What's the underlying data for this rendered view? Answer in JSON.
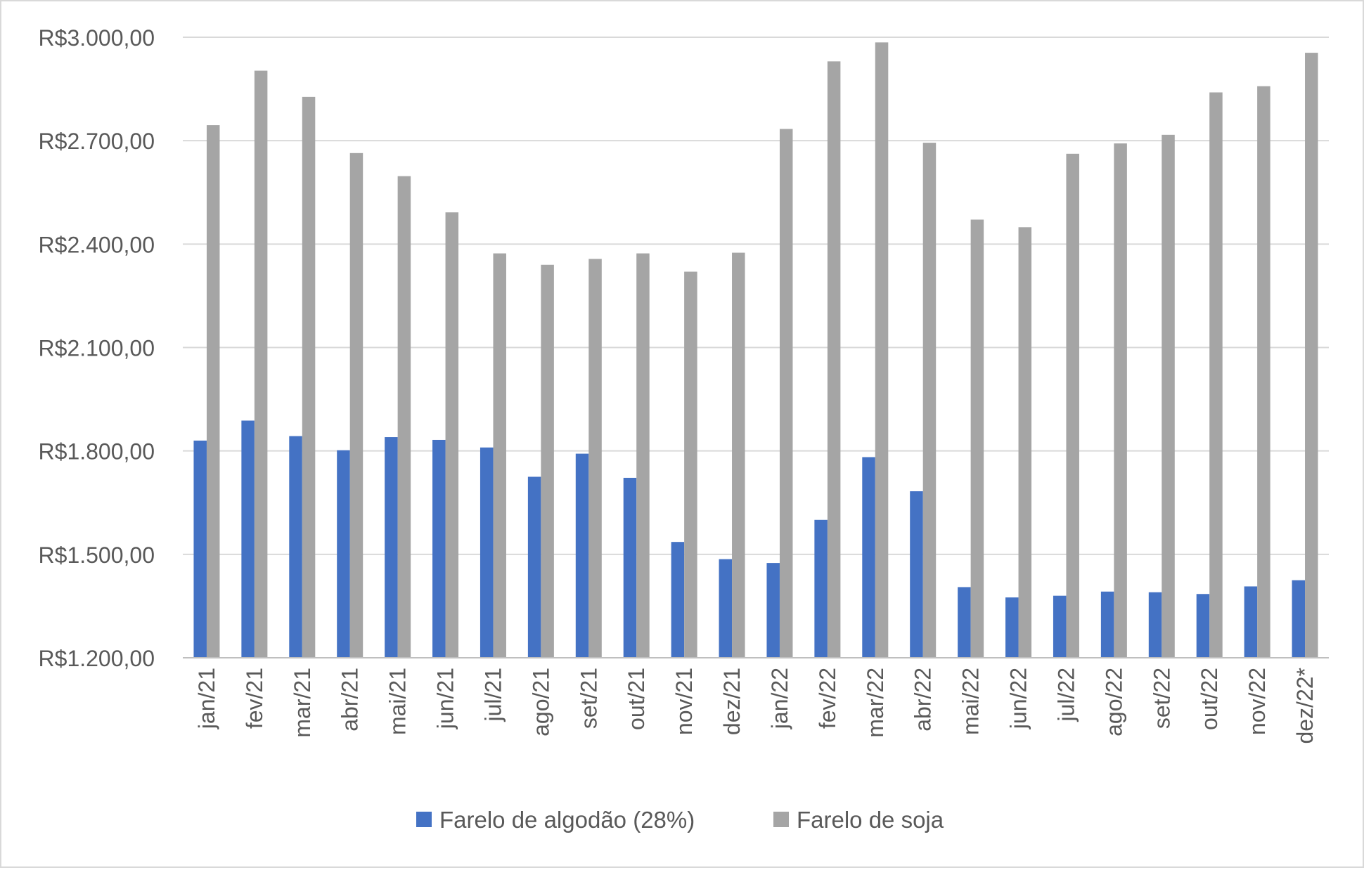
{
  "chart_data": {
    "type": "bar",
    "title": "",
    "xlabel": "",
    "ylabel": "",
    "ylim": [
      1200,
      3000
    ],
    "yticks": [
      1200,
      1500,
      1800,
      2100,
      2400,
      2700,
      3000
    ],
    "ytick_labels": [
      "R$1.200,00",
      "R$1.500,00",
      "R$1.800,00",
      "R$2.100,00",
      "R$2.400,00",
      "R$2.700,00",
      "R$3.000,00"
    ],
    "grid": true,
    "legend_position": "bottom",
    "categories": [
      "jan/21",
      "fev/21",
      "mar/21",
      "abr/21",
      "mai/21",
      "jun/21",
      "jul/21",
      "ago/21",
      "set/21",
      "out/21",
      "nov/21",
      "dez/21",
      "jan/22",
      "fev/22",
      "mar/22",
      "abr/22",
      "mai/22",
      "jun/22",
      "jul/22",
      "ago/22",
      "set/22",
      "out/22",
      "nov/22",
      "dez/22*"
    ],
    "series": [
      {
        "name": "Farelo de algodão (28%)",
        "color": "#4472c4",
        "values": [
          1830,
          1888,
          1843,
          1802,
          1840,
          1832,
          1810,
          1725,
          1792,
          1722,
          1536,
          1486,
          1475,
          1600,
          1782,
          1683,
          1405,
          1375,
          1380,
          1392,
          1390,
          1385,
          1407,
          1425
        ]
      },
      {
        "name": "Farelo de soja",
        "color": "#a5a5a5",
        "values": [
          2745,
          2903,
          2827,
          2664,
          2597,
          2492,
          2373,
          2340,
          2357,
          2373,
          2320,
          2375,
          2734,
          2930,
          2985,
          2694,
          2471,
          2449,
          2662,
          2692,
          2717,
          2840,
          2858,
          2955
        ]
      }
    ],
    "colors": {
      "gridline": "#d9d9d9",
      "axis": "#bfbfbf",
      "text": "#595959"
    }
  }
}
